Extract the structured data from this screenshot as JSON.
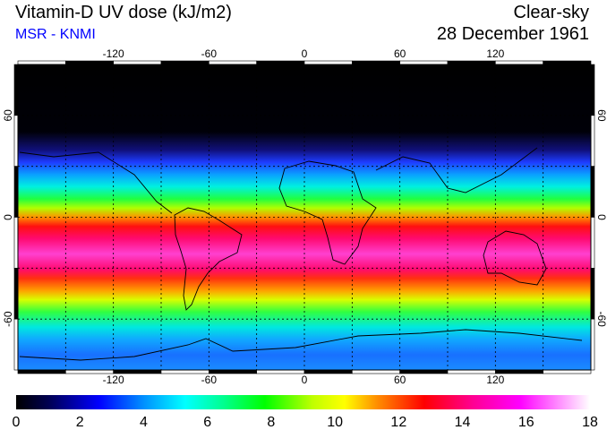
{
  "header": {
    "title": "Vitamin-D UV dose (kJ/m2)",
    "credit": "MSR - KNMI",
    "condition": "Clear-sky",
    "date": "28 December 1961"
  },
  "map": {
    "lon_ticks": [
      "-120",
      "-60",
      "0",
      "60",
      "120"
    ],
    "lon_values": [
      -120,
      -60,
      0,
      60,
      120
    ],
    "lat_ticks": [
      "60",
      "0",
      "-60"
    ],
    "lat_values": [
      60,
      0,
      -60
    ],
    "lon_range": [
      -180,
      180
    ],
    "lat_range": [
      -90,
      90
    ]
  },
  "colorbar": {
    "ticks": [
      "0",
      "2",
      "4",
      "6",
      "8",
      "10",
      "12",
      "14",
      "16",
      "18"
    ],
    "range": [
      0,
      18
    ],
    "stops": [
      {
        "v": 0,
        "c": "#000000"
      },
      {
        "v": 1,
        "c": "#000050"
      },
      {
        "v": 2.6,
        "c": "#0000ff"
      },
      {
        "v": 4,
        "c": "#0090ff"
      },
      {
        "v": 5.3,
        "c": "#00ffff"
      },
      {
        "v": 6.5,
        "c": "#00ff90"
      },
      {
        "v": 7.8,
        "c": "#00ff00"
      },
      {
        "v": 9.3,
        "c": "#c0ff00"
      },
      {
        "v": 10.3,
        "c": "#ffff00"
      },
      {
        "v": 11.3,
        "c": "#ff9000"
      },
      {
        "v": 12.8,
        "c": "#ff0000"
      },
      {
        "v": 14.3,
        "c": "#ff0090"
      },
      {
        "v": 15.8,
        "c": "#ff00ff"
      },
      {
        "v": 18,
        "c": "#ffffff"
      }
    ]
  }
}
